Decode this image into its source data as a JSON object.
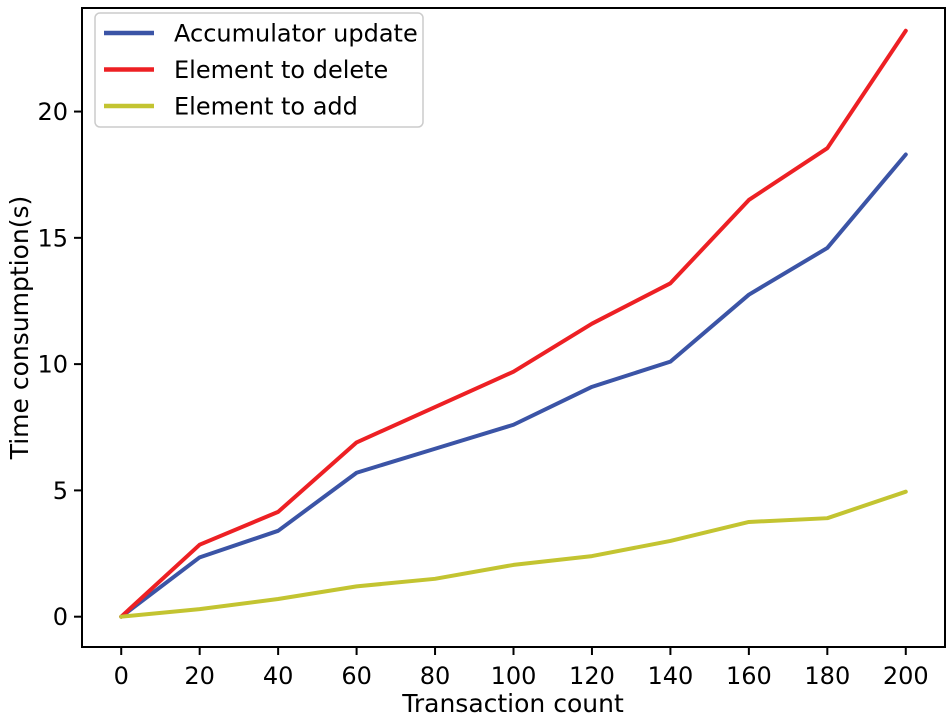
{
  "figure": {
    "background": "#ffffff",
    "axis_color": "#000000",
    "legend_border_color": "#cccccc",
    "legend_background": "#ffffff"
  },
  "chart_data": {
    "type": "line",
    "title": "",
    "xlabel": "Transaction count",
    "ylabel": "Time consumption(s)",
    "x": [
      0,
      20,
      40,
      60,
      80,
      100,
      120,
      140,
      160,
      180,
      200
    ],
    "series": [
      {
        "name": "Accumulator update",
        "color": "#3b54a6",
        "values": [
          0,
          2.35,
          3.4,
          5.7,
          6.65,
          7.6,
          9.1,
          10.1,
          12.75,
          14.6,
          18.3
        ]
      },
      {
        "name": "Element to delete",
        "color": "#ed2024",
        "values": [
          0,
          2.85,
          4.15,
          6.9,
          8.3,
          9.7,
          11.6,
          13.2,
          16.5,
          18.55,
          23.2
        ]
      },
      {
        "name": "Element to add",
        "color": "#c3c431",
        "values": [
          0,
          0.3,
          0.7,
          1.2,
          1.5,
          2.05,
          2.4,
          3.0,
          3.75,
          3.9,
          4.95
        ]
      }
    ],
    "xticks": [
      0,
      20,
      40,
      60,
      80,
      100,
      120,
      140,
      160,
      180,
      200
    ],
    "yticks": [
      0,
      5,
      10,
      15,
      20
    ],
    "xlim": [
      -10,
      210
    ],
    "ylim": [
      -1.2,
      24.1
    ],
    "grid": false,
    "legend_position": "upper-left"
  }
}
